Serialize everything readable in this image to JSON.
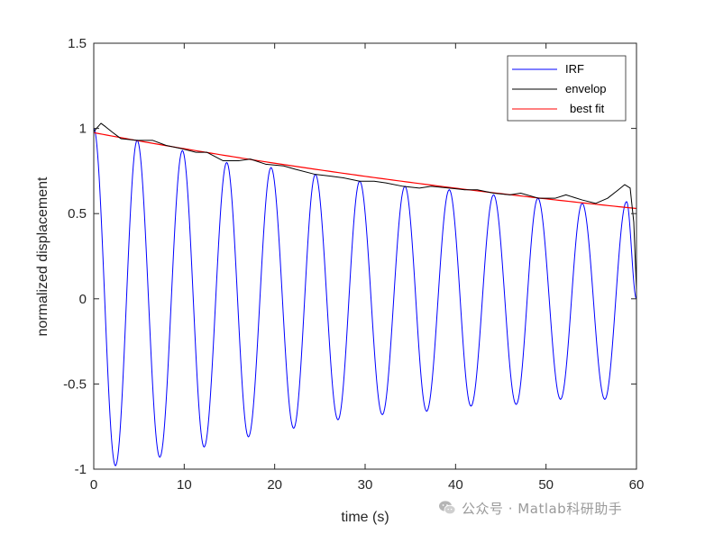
{
  "chart_data": {
    "type": "line",
    "xlabel": "time (s)",
    "ylabel": "normalized displacement",
    "xlim": [
      0,
      60
    ],
    "ylim": [
      -1,
      1.5
    ],
    "xticks": [
      0,
      10,
      20,
      30,
      40,
      50,
      60
    ],
    "yticks": [
      -1,
      -0.5,
      0,
      0.5,
      1,
      1.5
    ],
    "xtick_labels": [
      "0",
      "10",
      "20",
      "30",
      "40",
      "50",
      "60"
    ],
    "ytick_labels": [
      "-1",
      "-0.5",
      "0",
      "0.5",
      "1",
      "1.5"
    ],
    "grid": false,
    "legend_position": "top-right",
    "series": [
      {
        "name": "IRF",
        "color": "#0000ff",
        "peaks": [
          [
            0,
            1.0
          ],
          [
            2.4,
            -0.98
          ],
          [
            4.8,
            0.93
          ],
          [
            7.3,
            -0.93
          ],
          [
            9.8,
            0.87
          ],
          [
            12.2,
            -0.87
          ],
          [
            14.7,
            0.8
          ],
          [
            17.1,
            -0.81
          ],
          [
            19.6,
            0.77
          ],
          [
            22.1,
            -0.76
          ],
          [
            24.5,
            0.73
          ],
          [
            27.0,
            -0.71
          ],
          [
            29.4,
            0.69
          ],
          [
            31.9,
            -0.68
          ],
          [
            34.4,
            0.66
          ],
          [
            36.8,
            -0.66
          ],
          [
            39.3,
            0.64
          ],
          [
            41.7,
            -0.63
          ],
          [
            44.2,
            0.61
          ],
          [
            46.7,
            -0.62
          ],
          [
            49.1,
            0.59
          ],
          [
            51.6,
            -0.59
          ],
          [
            54.0,
            0.56
          ],
          [
            56.5,
            -0.59
          ],
          [
            58.9,
            0.57
          ],
          [
            60.0,
            0.0
          ]
        ]
      },
      {
        "name": "envelop",
        "color": "#000000",
        "points": [
          [
            0,
            0.98
          ],
          [
            0.3,
            1.0
          ],
          [
            0.8,
            1.03
          ],
          [
            1.3,
            1.01
          ],
          [
            2.0,
            0.98
          ],
          [
            3.0,
            0.94
          ],
          [
            4.8,
            0.93
          ],
          [
            6.5,
            0.93
          ],
          [
            8.0,
            0.9
          ],
          [
            9.8,
            0.88
          ],
          [
            11.3,
            0.86
          ],
          [
            12.5,
            0.86
          ],
          [
            14.3,
            0.81
          ],
          [
            16.0,
            0.81
          ],
          [
            17.3,
            0.82
          ],
          [
            19.0,
            0.79
          ],
          [
            21.0,
            0.78
          ],
          [
            22.3,
            0.76
          ],
          [
            24.5,
            0.73
          ],
          [
            26.2,
            0.72
          ],
          [
            27.6,
            0.71
          ],
          [
            29.4,
            0.69
          ],
          [
            31.0,
            0.69
          ],
          [
            32.3,
            0.68
          ],
          [
            34.2,
            0.66
          ],
          [
            36.0,
            0.65
          ],
          [
            37.3,
            0.66
          ],
          [
            39.3,
            0.65
          ],
          [
            41.0,
            0.64
          ],
          [
            42.4,
            0.64
          ],
          [
            44.2,
            0.62
          ],
          [
            46.0,
            0.61
          ],
          [
            47.2,
            0.62
          ],
          [
            49.2,
            0.59
          ],
          [
            51.0,
            0.59
          ],
          [
            52.2,
            0.61
          ],
          [
            54.0,
            0.58
          ],
          [
            55.5,
            0.56
          ],
          [
            56.8,
            0.59
          ],
          [
            58.0,
            0.64
          ],
          [
            58.7,
            0.67
          ],
          [
            59.3,
            0.65
          ],
          [
            59.7,
            0.45
          ],
          [
            60.0,
            0.05
          ]
        ]
      },
      {
        "name": "best fit",
        "color": "#ff0000",
        "start_value": 0.975,
        "end_value": 0.53
      }
    ]
  },
  "watermark": {
    "text": "公众号 · Matlab科研助手"
  }
}
